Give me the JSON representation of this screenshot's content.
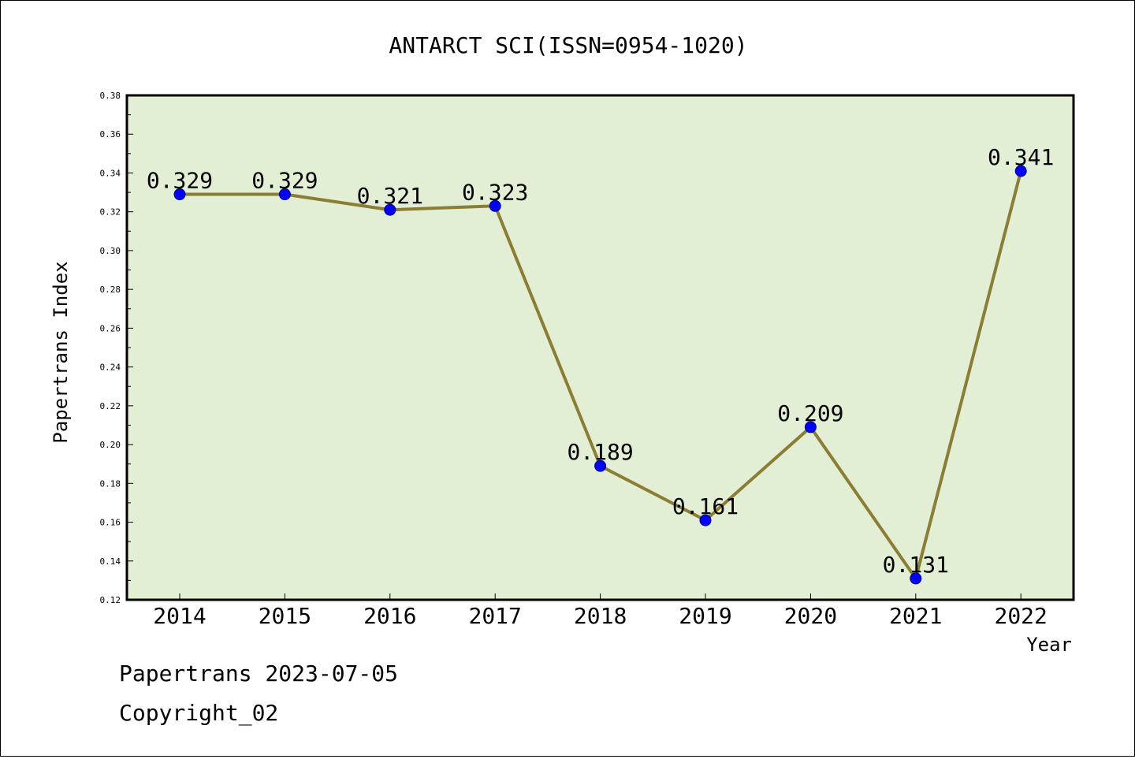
{
  "chart_data": {
    "type": "line",
    "title": "ANTARCT SCI(ISSN=0954-1020)",
    "xlabel": "Year",
    "ylabel": "Papertrans Index",
    "x": [
      "2014",
      "2015",
      "2016",
      "2017",
      "2018",
      "2019",
      "2020",
      "2021",
      "2022"
    ],
    "series": [
      {
        "values": [
          0.329,
          0.329,
          0.321,
          0.323,
          0.189,
          0.161,
          0.209,
          0.131,
          0.341
        ],
        "labels": [
          "0.329",
          "0.329",
          "0.321",
          "0.323",
          "0.189",
          "0.161",
          "0.209",
          "0.131",
          "0.341"
        ]
      }
    ],
    "ylim": [
      0.12,
      0.38
    ],
    "yticks": [
      "0.12",
      "0.14",
      "0.16",
      "0.18",
      "0.20",
      "0.22",
      "0.24",
      "0.26",
      "0.28",
      "0.30",
      "0.32",
      "0.34",
      "0.36",
      "0.38"
    ],
    "grid": false,
    "colors": {
      "plot_background": "#e2efd5",
      "line": "#8b7d33",
      "marker": "#0000ff",
      "marker_edge": "#000080"
    }
  },
  "footer": {
    "line1": "Papertrans 2023-07-05",
    "line2": "Copyright_02"
  }
}
